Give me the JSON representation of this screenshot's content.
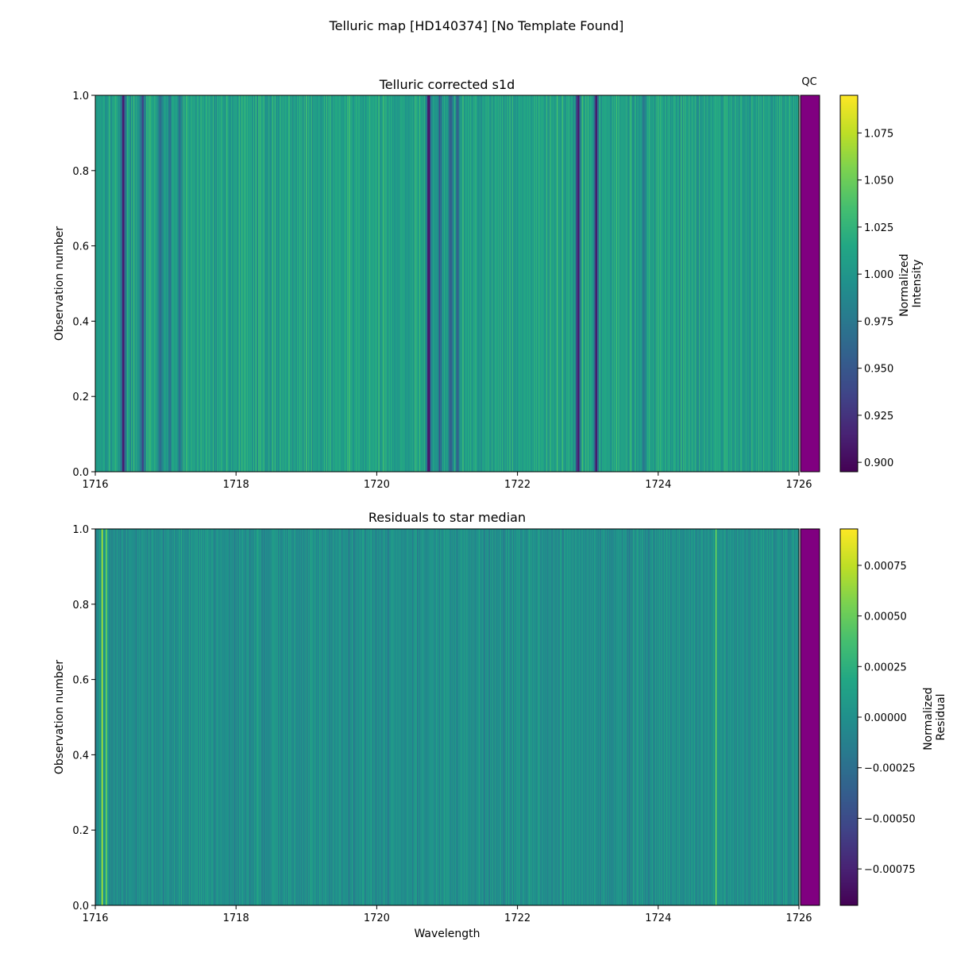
{
  "figure": {
    "suptitle": "Telluric map [HD140374] [No Template Found]"
  },
  "chart_data": [
    {
      "type": "heatmap",
      "title": "Telluric corrected s1d",
      "xlabel": "",
      "ylabel": "Observation number",
      "xlim": [
        1716,
        1726
      ],
      "ylim": [
        0.0,
        1.0
      ],
      "xticks": [
        1716,
        1718,
        1720,
        1722,
        1724,
        1726
      ],
      "yticks": [
        0.0,
        0.2,
        0.4,
        0.6,
        0.8,
        1.0
      ],
      "ytick_labels": [
        "0.0",
        "0.2",
        "0.4",
        "0.6",
        "0.8",
        "1.0"
      ],
      "colormap": "viridis",
      "colorbar": {
        "label_lines": [
          "Normalized",
          "Intensity"
        ],
        "vmin": 0.895,
        "vmax": 1.095,
        "ticks": [
          0.9,
          0.925,
          0.95,
          0.975,
          1.0,
          1.025,
          1.05,
          1.075
        ],
        "tick_labels": [
          "0.900",
          "0.925",
          "0.950",
          "0.975",
          "1.000",
          "1.025",
          "1.050",
          "1.075"
        ]
      },
      "baseline": 1.01,
      "noise": 0.02,
      "absorption_lines": [
        {
          "x": 1716.4,
          "depth": 0.1
        },
        {
          "x": 1716.67,
          "depth": 0.07
        },
        {
          "x": 1716.92,
          "depth": 0.05
        },
        {
          "x": 1717.05,
          "depth": 0.04
        },
        {
          "x": 1717.2,
          "depth": 0.04
        },
        {
          "x": 1720.74,
          "depth": 0.11
        },
        {
          "x": 1720.9,
          "depth": 0.06
        },
        {
          "x": 1721.05,
          "depth": 0.06
        },
        {
          "x": 1721.15,
          "depth": 0.05
        },
        {
          "x": 1722.86,
          "depth": 0.11
        },
        {
          "x": 1723.12,
          "depth": 0.1
        },
        {
          "x": 1723.8,
          "depth": 0.03
        }
      ],
      "qc": {
        "label": "QC",
        "color": "#800080"
      }
    },
    {
      "type": "heatmap",
      "title": "Residuals to star median",
      "xlabel": "Wavelength",
      "ylabel": "Observation number",
      "xlim": [
        1716,
        1726
      ],
      "ylim": [
        0.0,
        1.0
      ],
      "xticks": [
        1716,
        1718,
        1720,
        1722,
        1724,
        1726
      ],
      "yticks": [
        0.0,
        0.2,
        0.4,
        0.6,
        0.8,
        1.0
      ],
      "ytick_labels": [
        "0.0",
        "0.2",
        "0.4",
        "0.6",
        "0.8",
        "1.0"
      ],
      "colormap": "viridis",
      "colorbar": {
        "label_lines": [
          "Normalized",
          "Residual"
        ],
        "vmin": -0.00093,
        "vmax": 0.00093,
        "ticks": [
          -0.00075,
          -0.0005,
          -0.00025,
          0.0,
          0.00025,
          0.0005,
          0.00075
        ],
        "tick_labels": [
          "−0.00075",
          "−0.00050",
          "−0.00025",
          "0.00000",
          "0.00025",
          "0.00050",
          "0.00075"
        ]
      },
      "baseline": 0.0,
      "noise": 0.00015,
      "bright_lines": [
        {
          "x": 1716.1,
          "value": 0.0008
        },
        {
          "x": 1716.16,
          "value": 0.0006
        },
        {
          "x": 1724.82,
          "value": 0.0006
        }
      ],
      "qc": {
        "label": "",
        "color": "#800080"
      }
    }
  ]
}
